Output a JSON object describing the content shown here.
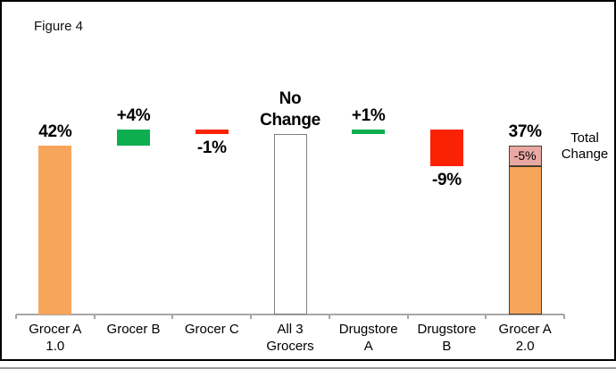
{
  "figure": {
    "title": "Figure 4"
  },
  "chart_data": {
    "type": "bar",
    "subtype": "waterfall",
    "unit": "%",
    "title": "Figure 4",
    "xlabel": "",
    "ylabel": "",
    "ylim": [
      0,
      46
    ],
    "grid": false,
    "categories": [
      "Grocer A 1.0",
      "Grocer B",
      "Grocer C",
      "All 3 Grocers",
      "Drugstore A",
      "Drugstore B",
      "Grocer A 2.0"
    ],
    "values": [
      42,
      4,
      -1,
      45,
      1,
      -9,
      37
    ],
    "bars": [
      {
        "category_lines": [
          "Grocer A",
          "1.0"
        ],
        "kind": "total",
        "from": 0,
        "to": 42,
        "label_lines": [
          "42%"
        ],
        "label_position": "above",
        "color": "orange"
      },
      {
        "category_lines": [
          "Grocer B"
        ],
        "kind": "delta",
        "from": 42,
        "to": 46,
        "label_lines": [
          "+4%"
        ],
        "label_position": "above",
        "color": "green"
      },
      {
        "category_lines": [
          "Grocer C"
        ],
        "kind": "delta",
        "from": 46,
        "to": 45,
        "label_lines": [
          "-1%"
        ],
        "label_position": "below",
        "color": "red"
      },
      {
        "category_lines": [
          "All 3",
          "Grocers"
        ],
        "kind": "total",
        "from": 0,
        "to": 45,
        "label_lines": [
          "No",
          "Change"
        ],
        "label_position": "above",
        "color": "white"
      },
      {
        "category_lines": [
          "Drugstore",
          "A"
        ],
        "kind": "delta",
        "from": 45,
        "to": 46,
        "label_lines": [
          "+1%"
        ],
        "label_position": "above",
        "color": "green"
      },
      {
        "category_lines": [
          "Drugstore",
          "B"
        ],
        "kind": "delta",
        "from": 46,
        "to": 37,
        "label_lines": [
          "-9%"
        ],
        "label_position": "below",
        "color": "red"
      },
      {
        "category_lines": [
          "Grocer A",
          "2.0"
        ],
        "kind": "total",
        "from": 0,
        "to": 37,
        "label_lines": [
          "37%"
        ],
        "label_position": "above",
        "color": "orange_bordered",
        "cap": {
          "from": 37,
          "to": 42,
          "label": "-5%",
          "color": "pink"
        }
      }
    ],
    "annotation": {
      "text": "Total Change"
    },
    "colors": {
      "orange": "#F8A55C",
      "green": "#0CAE4E",
      "red": "#FB2204",
      "pink": "#E9A8A3",
      "white_fill": "#FFFFFF",
      "white_border": "#7F7F7F",
      "dark_border": "#473E30",
      "axis_line": "#A6A6A6",
      "text": "#000000"
    }
  }
}
